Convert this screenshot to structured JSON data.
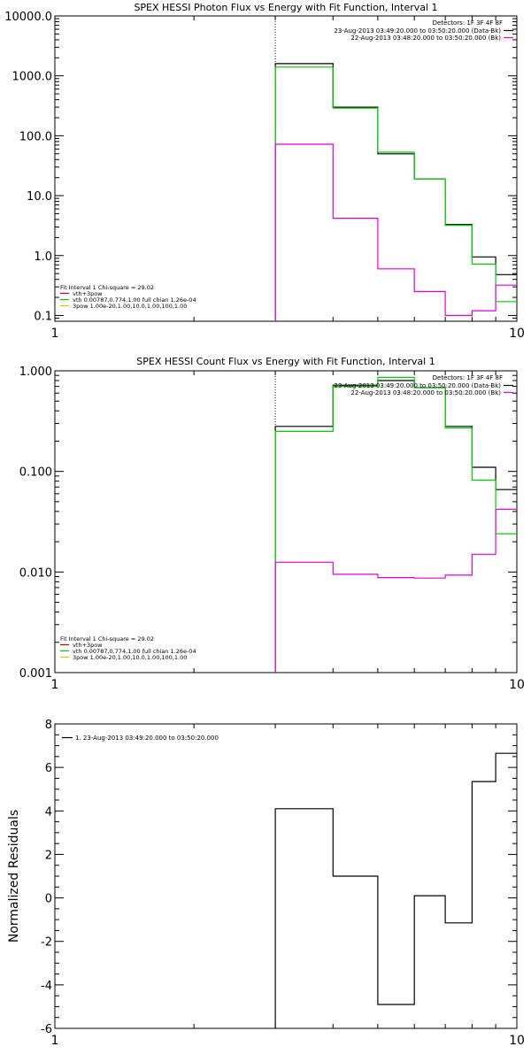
{
  "colors": {
    "data": "#000000",
    "bk": "#e000e0",
    "fit": "#00d000",
    "fit_total": "#d00000",
    "vth": "#00d000",
    "spow": "#e0c000",
    "axis": "#000000"
  },
  "chart_data": [
    {
      "type": "line",
      "title": "SPEX HESSI Photon Flux vs Energy with Fit Function, Interval 1",
      "xlabel": "",
      "ylabel": "",
      "xscale": "log",
      "yscale": "log",
      "xlim": [
        1,
        10
      ],
      "ylim": [
        0.08,
        10000
      ],
      "xticks": [
        "1",
        "10"
      ],
      "yticks": [
        "0.1",
        "1.0",
        "10.0",
        "100.0",
        "1000.0",
        "10000.0"
      ],
      "vline_x": 3,
      "detectors": "Detectors: 1F 3F 4F 8F",
      "legend_right": [
        "23-Aug-2013 03:49:20.000 to 03:50:20.000 (Data-Bk)",
        "22-Aug-2013 03:48:20.000 to 03:50:20.000 (Bk)"
      ],
      "fit_info": [
        "Fit Interval 1    Chi-square = 29.02",
        "vth+3pow",
        "vth 0.00787,0.774,1.00   full chian 1.26e-04",
        "3pow 1.00e-20,1.00,10.0,1.00,100,1.00"
      ],
      "series": [
        {
          "name": "Data-Bk",
          "color": "#000000",
          "edges": [
            3,
            4,
            5,
            6,
            7,
            8,
            9,
            10
          ],
          "values": [
            1600,
            300,
            50,
            19,
            3.3,
            0.95,
            0.48
          ]
        },
        {
          "name": "vth+3pow",
          "color": "#00d000",
          "edges": [
            3,
            4,
            5,
            6,
            7,
            8,
            9,
            10
          ],
          "values": [
            1400,
            290,
            53,
            19,
            3.2,
            0.72,
            0.17
          ]
        },
        {
          "name": "Bk",
          "color": "#e000e0",
          "edges": [
            3,
            4,
            5,
            6,
            7,
            8,
            9,
            10
          ],
          "values": [
            72,
            4.2,
            0.6,
            0.25,
            0.1,
            0.12,
            0.32
          ]
        }
      ]
    },
    {
      "type": "line",
      "title": "SPEX HESSI Count Flux vs Energy with Fit Function, Interval 1",
      "xlabel": "",
      "ylabel": "",
      "xscale": "log",
      "yscale": "log",
      "xlim": [
        1,
        10
      ],
      "ylim": [
        0.001,
        1.0
      ],
      "xticks": [
        "1",
        "10"
      ],
      "yticks": [
        "0.001",
        "0.010",
        "0.100",
        "1.000"
      ],
      "vline_x": 3,
      "detectors": "Detectors: 1F 3F 4F 8F",
      "legend_right": [
        "23-Aug-2013 03:49:20.000 to 03:50:20.000 (Data-Bk)",
        "22-Aug-2013 03:48:20.000 to 03:50:20.000 (Bk)"
      ],
      "fit_info": [
        "Fit Interval 1    Chi-square = 29.02",
        "vth+3pow",
        "vth 0.00787,0.774,1.00   full chian 1.26e-04",
        "3pow 1.00e-20,1.00,10.0,1.00,100,1.00"
      ],
      "series": [
        {
          "name": "Data-Bk",
          "color": "#000000",
          "edges": [
            3,
            4,
            5,
            6,
            7,
            8,
            9,
            10
          ],
          "values": [
            0.28,
            0.72,
            0.8,
            0.68,
            0.28,
            0.11,
            0.066
          ]
        },
        {
          "name": "vth+3pow",
          "color": "#00d000",
          "edges": [
            3,
            4,
            5,
            6,
            7,
            8,
            9,
            10
          ],
          "values": [
            0.25,
            0.7,
            0.86,
            0.68,
            0.27,
            0.082,
            0.024
          ]
        },
        {
          "name": "Bk",
          "color": "#e000e0",
          "edges": [
            3,
            4,
            5,
            6,
            7,
            8,
            9,
            10
          ],
          "values": [
            0.0125,
            0.0095,
            0.0088,
            0.0087,
            0.0093,
            0.015,
            0.042
          ]
        }
      ]
    },
    {
      "type": "line",
      "title": "",
      "xlabel": "",
      "ylabel": "Normalized Residuals",
      "xscale": "log",
      "yscale": "linear",
      "xlim": [
        1,
        10
      ],
      "ylim": [
        -6,
        8
      ],
      "xticks": [
        "1",
        "10"
      ],
      "yticks": [
        "-6",
        "-4",
        "-2",
        "0",
        "2",
        "4",
        "6",
        "8"
      ],
      "legend": [
        "1. 23-Aug-2013 03:49:20.000 to 03:50:20.000"
      ],
      "series": [
        {
          "name": "1. 23-Aug-2013 03:49:20.000 to 03:50:20.000",
          "color": "#000000",
          "edges": [
            3,
            4,
            5,
            6,
            7,
            8,
            9,
            10
          ],
          "values": [
            4.1,
            1.0,
            -4.9,
            0.1,
            -1.15,
            5.35,
            6.65
          ]
        }
      ]
    }
  ]
}
